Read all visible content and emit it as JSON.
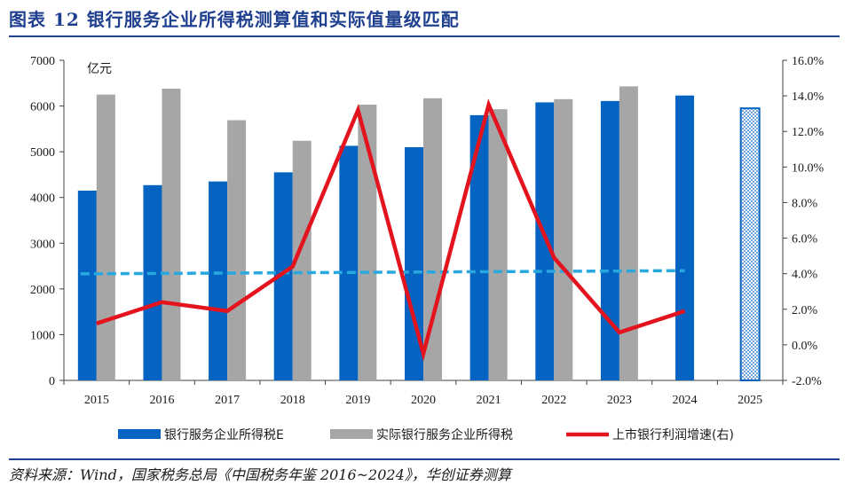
{
  "header": {
    "title": "图表 12   银行服务企业所得税测算值和实际值量级匹配"
  },
  "footer": {
    "source": "资料来源：Wind，国家税务总局《中国税务年鉴 2016~2024》，华创证券测算"
  },
  "colors": {
    "estimate": "#0563c1",
    "actual": "#a6a6a6",
    "growth": "#e3141e",
    "trend": "#29a8e0",
    "title": "#1f3f8f"
  },
  "chart_data": {
    "type": "bar",
    "categories": [
      "2015",
      "2016",
      "2017",
      "2018",
      "2019",
      "2020",
      "2021",
      "2022",
      "2023",
      "2024",
      "2025"
    ],
    "series": [
      {
        "name": "银行服务企业所得税E",
        "type": "bar",
        "values": [
          4150,
          4270,
          4350,
          4550,
          5130,
          5100,
          5800,
          6080,
          6110,
          6230,
          5950
        ]
      },
      {
        "name": "实际银行服务企业所得税",
        "type": "bar",
        "values": [
          6250,
          6380,
          5690,
          5240,
          6030,
          6170,
          5930,
          6150,
          6430,
          null,
          null
        ]
      },
      {
        "name": "上市银行利润增速(右)",
        "type": "line",
        "axis": "right",
        "values": [
          1.2,
          2.4,
          1.9,
          4.4,
          13.2,
          -0.5,
          13.5,
          4.9,
          0.7,
          1.9,
          null
        ]
      }
    ],
    "trend_line": {
      "style": "dashed",
      "axis": "left",
      "from": {
        "x": "2015",
        "y": 2330
      },
      "to": {
        "x": "2024",
        "y": 2400
      }
    },
    "forecast_category": "2025",
    "unit_label": "亿元",
    "yleft": {
      "min": 0,
      "max": 7000,
      "step": 1000,
      "ticks": [
        "0",
        "1000",
        "2000",
        "3000",
        "4000",
        "5000",
        "6000",
        "7000"
      ]
    },
    "yright": {
      "min": -2,
      "max": 16,
      "step": 2,
      "ticks": [
        "-2.0%",
        "0.0%",
        "2.0%",
        "4.0%",
        "6.0%",
        "8.0%",
        "10.0%",
        "12.0%",
        "14.0%",
        "16.0%"
      ]
    },
    "legend_position": "bottom"
  }
}
